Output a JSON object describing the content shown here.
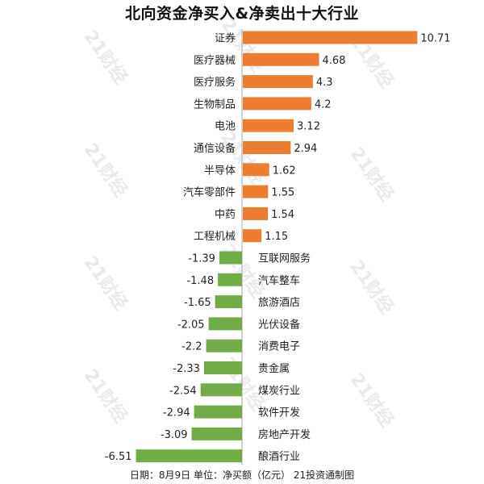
{
  "chart_data": {
    "type": "bar",
    "orientation": "horizontal",
    "title": "北向资金净买入&净卖出十大行业",
    "footer": "日期：8月9日 单位：净买额（亿元） 21投资通制图",
    "watermark": "21财经",
    "colors": {
      "positive": "#ed7d31",
      "negative": "#70ad47"
    },
    "categories": [
      "证券",
      "医疗器械",
      "医疗服务",
      "生物制品",
      "电池",
      "通信设备",
      "半导体",
      "汽车零部件",
      "中药",
      "工程机械",
      "互联网服务",
      "汽车整车",
      "旅游酒店",
      "光伏设备",
      "消费电子",
      "贵金属",
      "煤炭行业",
      "软件开发",
      "房地产开发",
      "酿酒行业"
    ],
    "values": [
      10.71,
      4.68,
      4.3,
      4.2,
      3.12,
      2.94,
      1.62,
      1.55,
      1.54,
      1.15,
      -1.39,
      -1.48,
      -1.65,
      -2.05,
      -2.2,
      -2.33,
      -2.54,
      -2.94,
      -3.09,
      -6.51
    ],
    "value_labels": [
      "10.71",
      "4.68",
      "4.3",
      "4.2",
      "3.12",
      "2.94",
      "1.62",
      "1.55",
      "1.54",
      "1.15",
      "-1.39",
      "-1.48",
      "-1.65",
      "-2.05",
      "-2.2",
      "-2.33",
      "-2.54",
      "-2.94",
      "-3.09",
      "-6.51"
    ],
    "grid": false,
    "legend": "none"
  }
}
